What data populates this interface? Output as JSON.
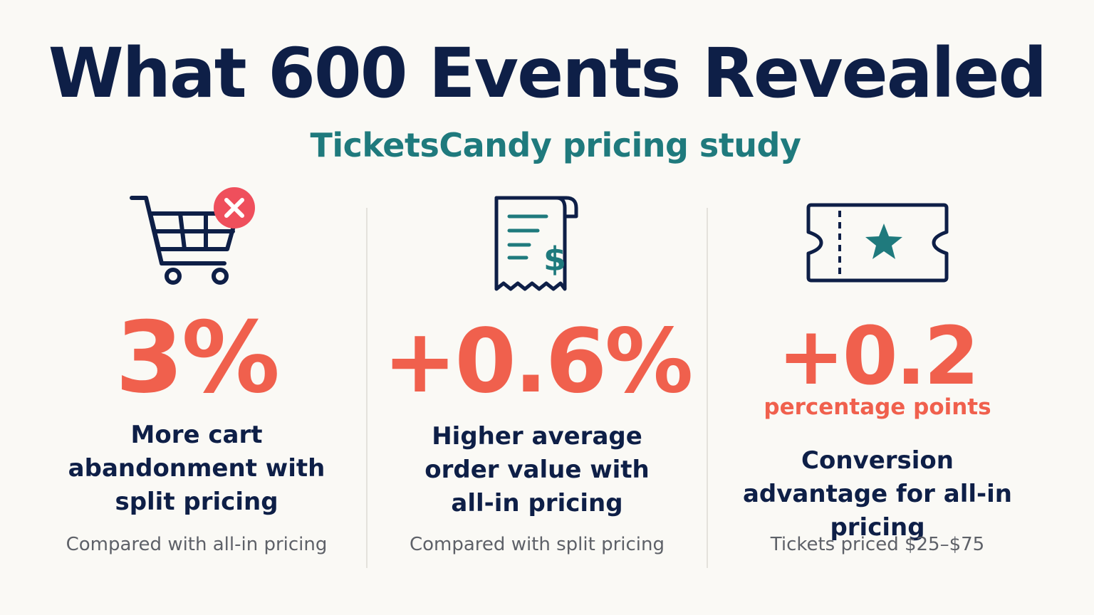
{
  "header": {
    "title": "What 600 Events Revealed",
    "subtitle": "TicketsCandy pricing study"
  },
  "stats": [
    {
      "icon": "shopping-cart-remove-icon",
      "value": "3%",
      "unit": "",
      "description": "More cart abandonment with split pricing",
      "note": "Compared with all-in pricing"
    },
    {
      "icon": "receipt-dollar-icon",
      "value": "+0.6%",
      "unit": "",
      "description": "Higher average order value with all-in pricing",
      "note": "Compared with split pricing"
    },
    {
      "icon": "ticket-star-icon",
      "value": "+0.2",
      "unit": "percentage points",
      "description": "Conversion advantage for all-in pricing",
      "note": "Tickets priced $25–$75"
    }
  ],
  "colors": {
    "background": "#faf9f5",
    "navy": "#0e1f47",
    "teal": "#1f7a7d",
    "coral": "#f0604d",
    "gray_text": "#5e6168"
  }
}
